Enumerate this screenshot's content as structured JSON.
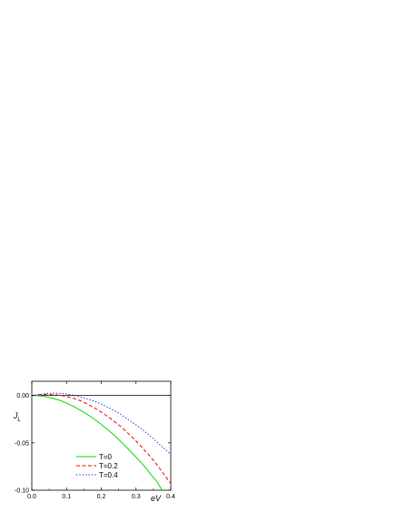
{
  "chart_data": {
    "type": "line",
    "title": "",
    "xlabel": "eV",
    "ylabel_main": "J",
    "ylabel_sub": "L",
    "xlim": [
      0.0,
      0.4
    ],
    "ylim": [
      -0.1,
      0.015
    ],
    "xticks": [
      {
        "value": 0.0,
        "label": "0.0"
      },
      {
        "value": 0.1,
        "label": "0.1"
      },
      {
        "value": 0.2,
        "label": "0.2"
      },
      {
        "value": 0.3,
        "label": "0.3"
      },
      {
        "value": 0.4,
        "label": "0.4"
      }
    ],
    "yticks": [
      {
        "value": 0.0,
        "label": "0.00"
      },
      {
        "value": -0.05,
        "label": "-0.05"
      },
      {
        "value": -0.1,
        "label": "-0.10"
      }
    ],
    "zero_line": 0.0,
    "grid": false,
    "legend_position": "bottom-left",
    "series": [
      {
        "name": "T=0",
        "color": "#00dd00",
        "dash": "solid",
        "points": [
          [
            0.0,
            0.0
          ],
          [
            0.02,
            -0.0003
          ],
          [
            0.04,
            -0.0012
          ],
          [
            0.06,
            -0.003
          ],
          [
            0.08,
            -0.005
          ],
          [
            0.1,
            -0.008
          ],
          [
            0.12,
            -0.0115
          ],
          [
            0.14,
            -0.0155
          ],
          [
            0.16,
            -0.02
          ],
          [
            0.18,
            -0.025
          ],
          [
            0.2,
            -0.0305
          ],
          [
            0.22,
            -0.0365
          ],
          [
            0.24,
            -0.043
          ],
          [
            0.26,
            -0.05
          ],
          [
            0.28,
            -0.0575
          ],
          [
            0.3,
            -0.065
          ],
          [
            0.32,
            -0.073
          ],
          [
            0.34,
            -0.082
          ],
          [
            0.36,
            -0.091
          ],
          [
            0.375,
            -0.1
          ]
        ]
      },
      {
        "name": "T=0.2",
        "color": "#ee0000",
        "dash": "dashed",
        "points": [
          [
            0.0,
            0.0
          ],
          [
            0.02,
            0.0008
          ],
          [
            0.04,
            0.001
          ],
          [
            0.06,
            0.0008
          ],
          [
            0.08,
            0.0002
          ],
          [
            0.1,
            -0.001
          ],
          [
            0.12,
            -0.003
          ],
          [
            0.14,
            -0.0055
          ],
          [
            0.16,
            -0.009
          ],
          [
            0.18,
            -0.013
          ],
          [
            0.2,
            -0.0175
          ],
          [
            0.22,
            -0.0225
          ],
          [
            0.24,
            -0.028
          ],
          [
            0.26,
            -0.034
          ],
          [
            0.28,
            -0.041
          ],
          [
            0.3,
            -0.048
          ],
          [
            0.32,
            -0.056
          ],
          [
            0.34,
            -0.064
          ],
          [
            0.36,
            -0.073
          ],
          [
            0.38,
            -0.083
          ],
          [
            0.4,
            -0.093
          ]
        ]
      },
      {
        "name": "T=0.4",
        "color": "#0000ee",
        "dash": "dotted",
        "points": [
          [
            0.0,
            0.0
          ],
          [
            0.02,
            0.001
          ],
          [
            0.04,
            0.002
          ],
          [
            0.06,
            0.0024
          ],
          [
            0.08,
            0.0023
          ],
          [
            0.1,
            0.0015
          ],
          [
            0.12,
            0.0002
          ],
          [
            0.14,
            -0.0015
          ],
          [
            0.16,
            -0.0035
          ],
          [
            0.18,
            -0.006
          ],
          [
            0.2,
            -0.009
          ],
          [
            0.22,
            -0.0125
          ],
          [
            0.24,
            -0.0165
          ],
          [
            0.26,
            -0.021
          ],
          [
            0.28,
            -0.026
          ],
          [
            0.3,
            -0.031
          ],
          [
            0.32,
            -0.0365
          ],
          [
            0.34,
            -0.0425
          ],
          [
            0.36,
            -0.049
          ],
          [
            0.38,
            -0.0555
          ],
          [
            0.4,
            -0.062
          ]
        ]
      }
    ]
  }
}
